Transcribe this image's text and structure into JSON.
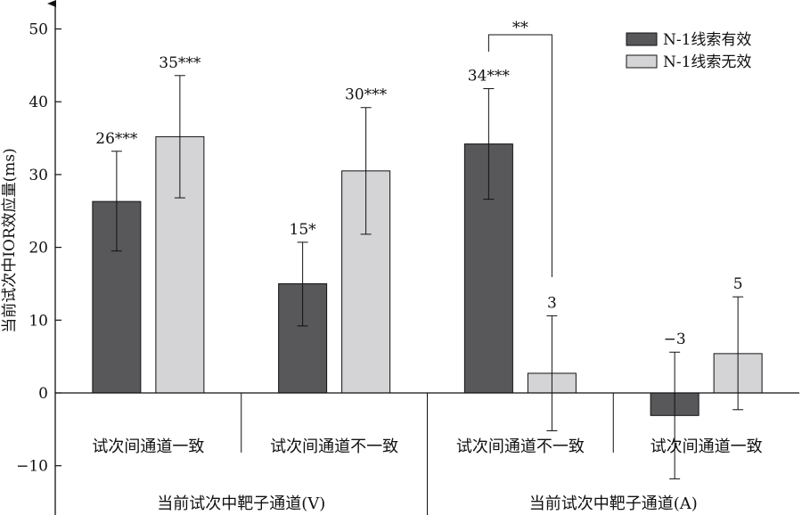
{
  "chart_data": {
    "type": "bar",
    "ylabel": "当前试次中IOR效应量(ms)",
    "ylim": [
      -15,
      55
    ],
    "yticks": [
      50,
      40,
      30,
      20,
      10,
      0,
      -10
    ],
    "ytick_labels": [
      "50",
      "40",
      "30",
      "20",
      "10",
      "0",
      "−10"
    ],
    "categories": [
      "试次间通道一致",
      "试次间通道不一致",
      "试次间通道不一致",
      "试次间通道一致"
    ],
    "groups": [
      {
        "label": "当前试次中靶子通道(V)",
        "span": [
          0,
          1
        ]
      },
      {
        "label": "当前试次中靶子通道(A)",
        "span": [
          2,
          3
        ]
      }
    ],
    "series": [
      {
        "name": "N-1线索有效",
        "color": "#58585a",
        "values": [
          26.3,
          15.0,
          34.2,
          -3.1
        ],
        "err_low": [
          19.5,
          9.2,
          26.6,
          -11.8
        ],
        "err_high": [
          33.2,
          20.7,
          41.8,
          5.6
        ],
        "labels": [
          "26***",
          "15*",
          "34***",
          "−3"
        ]
      },
      {
        "name": "N-1线索无效",
        "color": "#d4d4d6",
        "values": [
          35.2,
          30.5,
          2.7,
          5.4
        ],
        "err_low": [
          26.8,
          21.8,
          -5.2,
          -2.3
        ],
        "err_high": [
          43.6,
          39.2,
          10.6,
          13.2
        ],
        "labels": [
          "35***",
          "30***",
          "3",
          "5"
        ]
      }
    ],
    "significance": {
      "label": "**",
      "category_index": 2
    },
    "legend": "top-right",
    "grid": false
  }
}
